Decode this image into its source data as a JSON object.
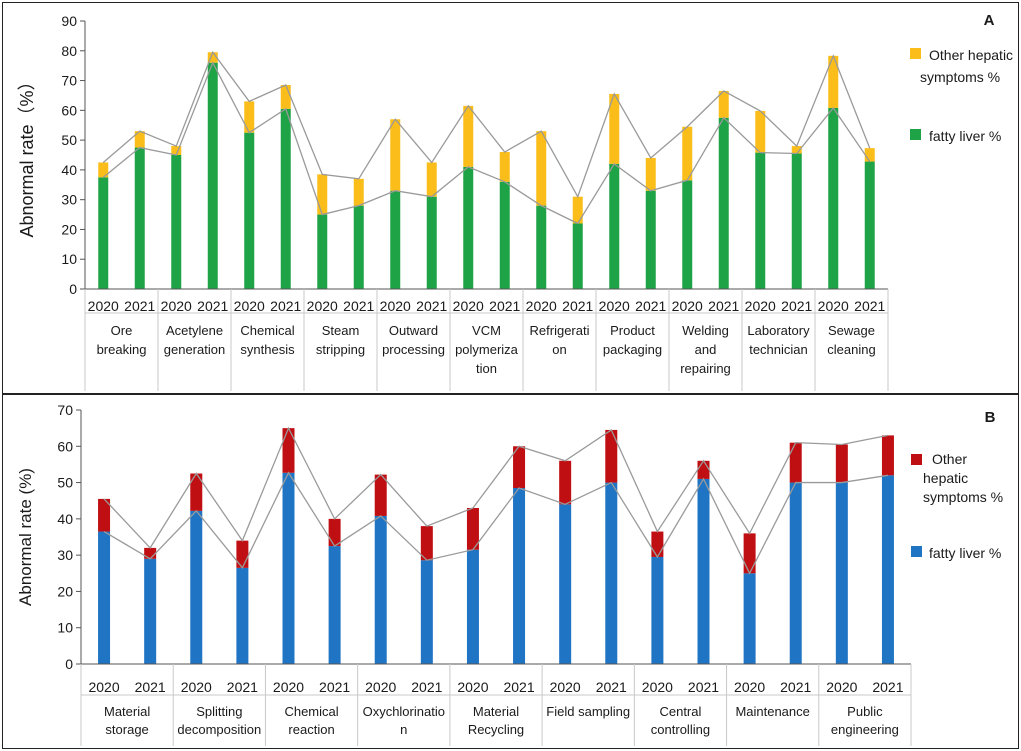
{
  "chart_data": [
    {
      "type": "bar",
      "stacked": true,
      "panel_label": "A",
      "ylabel": "Abnormal rate（%）",
      "ylim": [
        0,
        90
      ],
      "yticks": [
        0,
        10,
        20,
        30,
        40,
        50,
        60,
        70,
        80,
        90
      ],
      "years": [
        "2020",
        "2021"
      ],
      "groups": [
        "Ore breaking",
        "Acetylene generation",
        "Chemical synthesis",
        "Steam stripping",
        "Outward processing",
        "VCM polymerization",
        "Refrigeration",
        "Product packaging",
        "Welding and repairing",
        "Laboratory technician",
        "Sewage cleaning"
      ],
      "group_label_lines": [
        [
          "Ore",
          "breaking"
        ],
        [
          "Acetylene",
          "generation"
        ],
        [
          "Chemical",
          "synthesis"
        ],
        [
          "Steam",
          "stripping"
        ],
        [
          "Outward",
          "processing"
        ],
        [
          "VCM",
          "polymeriza",
          "tion"
        ],
        [
          "Refrigerati",
          "on"
        ],
        [
          "Product",
          "packaging"
        ],
        [
          "Welding",
          "and",
          "repairing"
        ],
        [
          "Laboratory",
          "technician"
        ],
        [
          "Sewage",
          "cleaning"
        ]
      ],
      "series": [
        {
          "name": "fatty liver %",
          "color": "#1fa347",
          "values": [
            37.5,
            47.5,
            45,
            76,
            52.5,
            60.5,
            25,
            28,
            33,
            31,
            41,
            36,
            28,
            22,
            42,
            33,
            36.5,
            57.5,
            45.8,
            45.5,
            60.8,
            42.8
          ]
        },
        {
          "name": "Other hepatic symptoms %",
          "color": "#fbbd1a",
          "values": [
            5,
            5.5,
            3,
            3.5,
            10.5,
            8,
            13.5,
            9,
            24,
            11.5,
            20.5,
            10,
            25,
            9,
            23.5,
            11,
            18,
            9,
            14,
            2.5,
            17.5,
            4.5
          ]
        }
      ],
      "legend": [
        {
          "label_lines": [
            "Other hepatic",
            "symptoms %"
          ],
          "color": "#fbbd1a"
        },
        {
          "label_lines": [
            "fatty liver %"
          ],
          "color": "#1fa347"
        }
      ]
    },
    {
      "type": "bar",
      "stacked": true,
      "panel_label": "B",
      "ylabel": "Abnormal rate (%)",
      "ylim": [
        0,
        70
      ],
      "yticks": [
        0,
        10,
        20,
        30,
        40,
        50,
        60,
        70
      ],
      "years": [
        "2020",
        "2021"
      ],
      "groups": [
        "Material storage",
        "Splitting decomposition",
        "Chemical reaction",
        "Oxychlorination",
        "Material Recycling",
        "Field sampling",
        "Central controlling",
        "Maintenance",
        "Public engineering"
      ],
      "group_label_lines": [
        [
          "Material",
          "storage"
        ],
        [
          "Splitting",
          "decomposition"
        ],
        [
          "Chemical",
          "reaction"
        ],
        [
          "Oxychlorinatio",
          "n"
        ],
        [
          "Material",
          "Recycling"
        ],
        [
          "Field sampling"
        ],
        [
          "Central",
          "controlling"
        ],
        [
          "Maintenance"
        ],
        [
          "Public",
          "engineering"
        ]
      ],
      "series": [
        {
          "name": "fatty liver %",
          "color": "#1f74c4",
          "values": [
            36.5,
            29,
            42.2,
            26.5,
            52.7,
            32.5,
            40.8,
            28.6,
            31.5,
            48.5,
            44,
            50,
            29.5,
            51,
            25,
            50,
            50,
            52
          ]
        },
        {
          "name": "Other hepatic symptoms %",
          "color": "#c00f12",
          "values": [
            9,
            3,
            10.3,
            7.5,
            12.3,
            7.5,
            11.4,
            9.4,
            11.5,
            11.5,
            12,
            14.5,
            7,
            5,
            11,
            11,
            10.5,
            11
          ]
        }
      ],
      "legend": [
        {
          "label_lines": [
            "Other",
            "hepatic",
            "symptoms %"
          ],
          "color": "#c00f12"
        },
        {
          "label_lines": [
            "fatty liver %"
          ],
          "color": "#1f74c4"
        }
      ]
    }
  ]
}
